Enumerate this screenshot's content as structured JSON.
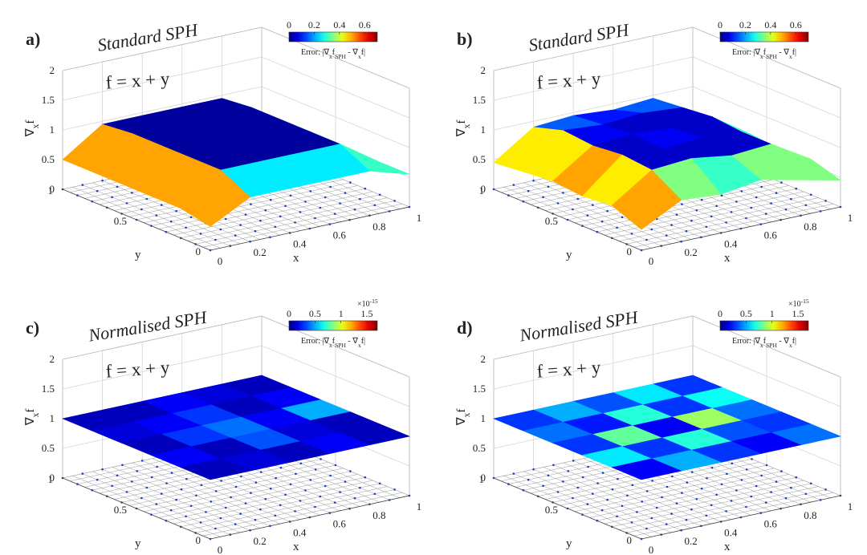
{
  "chart_data": [
    {
      "type": "surface",
      "panel_label": "a)",
      "title": "Standard SPH",
      "annotation": "f = x + y",
      "zlabel": [
        {
          "text": "∇"
        },
        {
          "text": "x",
          "sub": true
        },
        {
          "text": "f"
        }
      ],
      "xlabel": "x",
      "ylabel": "y",
      "xlim": [
        0,
        1
      ],
      "ylim": [
        0,
        1
      ],
      "zlim": [
        0,
        2
      ],
      "xticks": [
        0,
        0.2,
        0.4,
        0.6,
        0.8,
        1
      ],
      "yticks": [
        0,
        0.5,
        1
      ],
      "zticks": [
        0,
        0.5,
        1,
        1.5,
        2
      ],
      "colormap": "jet",
      "clim": [
        0,
        0.7
      ],
      "cticks": [
        0,
        0.2,
        0.4,
        0.6
      ],
      "colorbar_label": [
        {
          "text": "Error: |∇"
        },
        {
          "text": "x",
          "sub": true
        },
        {
          "text": "f"
        },
        {
          "text": "SPH",
          "sub": true
        },
        {
          "text": " - ∇"
        },
        {
          "text": "x",
          "sub": true
        },
        {
          "text": "f|"
        }
      ],
      "z": [
        [
          0.4,
          0.75,
          0.75,
          0.75,
          0.75,
          0.55
        ],
        [
          0.5,
          1,
          1,
          1,
          1,
          0.55
        ],
        [
          0.5,
          1,
          1,
          1,
          1,
          0.55
        ],
        [
          0.5,
          1,
          1,
          1,
          1,
          0.55
        ],
        [
          0.5,
          1,
          1,
          1,
          1,
          0.55
        ],
        [
          0.5,
          0.95,
          0.95,
          0.95,
          0.95,
          0.5
        ]
      ],
      "error": [
        [
          0.5,
          0.25,
          0.25,
          0.25,
          0.3
        ],
        [
          0.5,
          0.02,
          0.02,
          0.02,
          0.3
        ],
        [
          0.5,
          0.02,
          0.02,
          0.02,
          0.3
        ],
        [
          0.5,
          0.02,
          0.02,
          0.02,
          0.3
        ],
        [
          0.5,
          0.02,
          0.02,
          0.02,
          0.3
        ]
      ]
    },
    {
      "type": "surface",
      "panel_label": "b)",
      "title": "Standard SPH",
      "annotation": "f = x + y",
      "zlabel": [
        {
          "text": "∇"
        },
        {
          "text": "x",
          "sub": true
        },
        {
          "text": "f"
        }
      ],
      "xlabel": "x",
      "ylabel": "y",
      "xlim": [
        0,
        1
      ],
      "ylim": [
        0,
        1
      ],
      "zlim": [
        0,
        2
      ],
      "xticks": [
        0,
        0.2,
        0.4,
        0.6,
        0.8,
        1
      ],
      "yticks": [
        0,
        0.5,
        1
      ],
      "zticks": [
        0,
        0.5,
        1,
        1.5,
        2
      ],
      "colormap": "jet",
      "clim": [
        0,
        0.7
      ],
      "cticks": [
        0,
        0.2,
        0.4,
        0.6
      ],
      "colorbar_label": [
        {
          "text": "Error: |∇"
        },
        {
          "text": "x",
          "sub": true
        },
        {
          "text": "f"
        },
        {
          "text": "SPH",
          "sub": true
        },
        {
          "text": " - ∇"
        },
        {
          "text": "x",
          "sub": true
        },
        {
          "text": "f|"
        }
      ],
      "z": [
        [
          0.35,
          0.7,
          0.65,
          0.75,
          0.6,
          0.45
        ],
        [
          0.55,
          1,
          1.05,
          0.95,
          1,
          0.6
        ],
        [
          0.5,
          1.05,
          1,
          1.05,
          1,
          0.55
        ],
        [
          0.55,
          1,
          1.05,
          1,
          1.05,
          0.6
        ],
        [
          0.5,
          1.05,
          1,
          1.05,
          1,
          0.55
        ],
        [
          0.45,
          0.9,
          0.95,
          0.9,
          0.95,
          0.4
        ]
      ],
      "error": [
        [
          0.5,
          0.35,
          0.3,
          0.35,
          0.35
        ],
        [
          0.45,
          0.05,
          0.05,
          0.05,
          0.3
        ],
        [
          0.5,
          0.05,
          0.08,
          0.05,
          0.3
        ],
        [
          0.45,
          0.08,
          0.05,
          0.05,
          0.3
        ],
        [
          0.45,
          0.15,
          0.1,
          0.15,
          0.35
        ]
      ]
    },
    {
      "type": "surface",
      "panel_label": "c)",
      "title": "Normalised SPH",
      "annotation": "f = x + y",
      "zlabel": [
        {
          "text": "∇"
        },
        {
          "text": "x",
          "sub": true
        },
        {
          "text": "f"
        }
      ],
      "xlabel": "x",
      "ylabel": "y",
      "xlim": [
        0,
        1
      ],
      "ylim": [
        0,
        1
      ],
      "zlim": [
        0,
        2
      ],
      "xticks": [
        0,
        0.2,
        0.4,
        0.6,
        0.8,
        1
      ],
      "yticks": [
        0,
        0.5,
        1
      ],
      "zticks": [
        0,
        0.5,
        1,
        1.5,
        2
      ],
      "colormap": "jet",
      "clim": [
        0,
        1.7
      ],
      "cticks": [
        0,
        0.5,
        1,
        1.5
      ],
      "colorbar_multiplier": [
        {
          "text": "×10"
        },
        {
          "text": "-15",
          "sup": true
        }
      ],
      "colorbar_label": [
        {
          "text": "Error: |∇"
        },
        {
          "text": "x",
          "sub": true
        },
        {
          "text": "f"
        },
        {
          "text": "SPH",
          "sub": true
        },
        {
          "text": " - ∇"
        },
        {
          "text": "x",
          "sub": true
        },
        {
          "text": "f|"
        }
      ],
      "z": [
        [
          1,
          1,
          1,
          1,
          1,
          1
        ],
        [
          1,
          1,
          1,
          1,
          1,
          1
        ],
        [
          1,
          1,
          1,
          1,
          1,
          1
        ],
        [
          1,
          1,
          1,
          1,
          1,
          1
        ],
        [
          1,
          1,
          1,
          1,
          1,
          1
        ],
        [
          1,
          1,
          1,
          1,
          1,
          1
        ]
      ],
      "error": [
        [
          0.1,
          0.15,
          0.1,
          0.2,
          0.1
        ],
        [
          0.2,
          0.1,
          0.35,
          0.15,
          0.1
        ],
        [
          0.1,
          0.3,
          0.4,
          0.2,
          0.5
        ],
        [
          0.15,
          0.2,
          0.3,
          0.1,
          0.2
        ],
        [
          0.1,
          0.1,
          0.2,
          0.15,
          0.1
        ]
      ]
    },
    {
      "type": "surface",
      "panel_label": "d)",
      "title": "Normalised SPH",
      "annotation": "f = x + y",
      "zlabel": [
        {
          "text": "∇"
        },
        {
          "text": "x",
          "sub": true
        },
        {
          "text": "f"
        }
      ],
      "xlabel": "x",
      "ylabel": "y",
      "xlim": [
        0,
        1
      ],
      "ylim": [
        0,
        1
      ],
      "zlim": [
        0,
        2
      ],
      "xticks": [
        0,
        0.2,
        0.4,
        0.6,
        0.8,
        1
      ],
      "yticks": [
        0,
        0.5,
        1
      ],
      "zticks": [
        0,
        0.5,
        1,
        1.5,
        2
      ],
      "colormap": "jet",
      "clim": [
        0,
        1.7
      ],
      "cticks": [
        0,
        0.5,
        1,
        1.5
      ],
      "colorbar_multiplier": [
        {
          "text": "×10"
        },
        {
          "text": "-15",
          "sup": true
        }
      ],
      "colorbar_label": [
        {
          "text": "Error: |∇"
        },
        {
          "text": "x",
          "sub": true
        },
        {
          "text": "f"
        },
        {
          "text": "SPH",
          "sub": true
        },
        {
          "text": " - ∇"
        },
        {
          "text": "x",
          "sub": true
        },
        {
          "text": "f|"
        }
      ],
      "z": [
        [
          1,
          1,
          1,
          1,
          1,
          1
        ],
        [
          1,
          1,
          1,
          1,
          1,
          1
        ],
        [
          1,
          1,
          1,
          1,
          1,
          1
        ],
        [
          1,
          1,
          1,
          1,
          1,
          1
        ],
        [
          1,
          1,
          1,
          1,
          1,
          1
        ],
        [
          1,
          1,
          1,
          1,
          1,
          1
        ]
      ],
      "error": [
        [
          0.2,
          0.5,
          0.3,
          0.2,
          0.4
        ],
        [
          0.6,
          0.3,
          0.7,
          0.35,
          0.3
        ],
        [
          0.3,
          0.8,
          0.2,
          0.9,
          0.4
        ],
        [
          0.4,
          0.25,
          0.7,
          0.3,
          0.65
        ],
        [
          0.3,
          0.5,
          0.35,
          0.6,
          0.3
        ]
      ]
    }
  ]
}
